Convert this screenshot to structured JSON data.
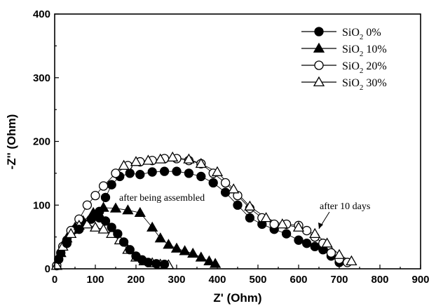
{
  "chart_data": {
    "type": "scatter",
    "xlabel": "Z' (Ohm)",
    "ylabel": "-Z'' (Ohm)",
    "xlim": [
      0,
      900
    ],
    "ylim": [
      0,
      400
    ],
    "xticks": [
      0,
      100,
      200,
      300,
      400,
      500,
      600,
      700,
      800,
      900
    ],
    "yticks": [
      0,
      100,
      200,
      300,
      400
    ],
    "legend_position": "top-right",
    "annotations": [
      {
        "text": "after being assembled",
        "x": 180,
        "y": 108
      },
      {
        "text": "after 10 days",
        "x": 680,
        "y": 102,
        "arrow_to": [
          655,
          60
        ]
      }
    ],
    "series": [
      {
        "name_main": "SiO",
        "name_sub": "2",
        "name_tail": " 0%",
        "marker": "circle-filled",
        "points": [
          [
            5,
            5
          ],
          [
            15,
            25
          ],
          [
            30,
            45
          ],
          [
            50,
            62
          ],
          [
            70,
            72
          ],
          [
            95,
            82
          ],
          [
            110,
            90
          ],
          [
            125,
            112
          ],
          [
            140,
            132
          ],
          [
            160,
            145
          ],
          [
            185,
            150
          ],
          [
            210,
            148
          ],
          [
            240,
            152
          ],
          [
            270,
            153
          ],
          [
            300,
            153
          ],
          [
            330,
            150
          ],
          [
            360,
            145
          ],
          [
            390,
            135
          ],
          [
            420,
            120
          ],
          [
            450,
            100
          ],
          [
            480,
            80
          ],
          [
            510,
            70
          ],
          [
            540,
            62
          ],
          [
            570,
            55
          ],
          [
            600,
            45
          ],
          [
            620,
            40
          ],
          [
            640,
            35
          ],
          [
            660,
            30
          ],
          [
            680,
            20
          ],
          [
            700,
            10
          ]
        ]
      },
      {
        "name_main": "SiO",
        "name_sub": "2",
        "name_tail": " 10%",
        "marker": "triangle-filled",
        "points": [
          [
            5,
            5
          ],
          [
            15,
            25
          ],
          [
            30,
            48
          ],
          [
            50,
            65
          ],
          [
            70,
            75
          ],
          [
            95,
            88
          ],
          [
            120,
            96
          ],
          [
            150,
            95
          ],
          [
            180,
            92
          ],
          [
            210,
            88
          ],
          [
            240,
            65
          ],
          [
            260,
            48
          ],
          [
            280,
            38
          ],
          [
            300,
            32
          ],
          [
            320,
            28
          ],
          [
            340,
            24
          ],
          [
            360,
            18
          ],
          [
            380,
            12
          ],
          [
            395,
            8
          ]
        ]
      },
      {
        "name_main": "SiO",
        "name_sub": "2",
        "name_tail": " 20%",
        "marker": "circle-open",
        "points": [
          [
            5,
            5
          ],
          [
            20,
            35
          ],
          [
            40,
            60
          ],
          [
            60,
            78
          ],
          [
            80,
            100
          ],
          [
            100,
            115
          ],
          [
            120,
            130
          ],
          [
            150,
            150
          ],
          [
            180,
            162
          ],
          [
            210,
            168
          ],
          [
            240,
            170
          ],
          [
            270,
            173
          ],
          [
            300,
            173
          ],
          [
            330,
            170
          ],
          [
            360,
            165
          ],
          [
            390,
            150
          ],
          [
            420,
            135
          ],
          [
            450,
            115
          ],
          [
            480,
            95
          ],
          [
            510,
            80
          ],
          [
            540,
            70
          ],
          [
            570,
            70
          ],
          [
            600,
            68
          ],
          [
            620,
            60
          ],
          [
            640,
            50
          ],
          [
            660,
            40
          ],
          [
            680,
            25
          ],
          [
            700,
            15
          ],
          [
            720,
            10
          ]
        ]
      },
      {
        "name_main": "SiO",
        "name_sub": "2",
        "name_tail": " 30%",
        "marker": "triangle-open",
        "points": [
          [
            5,
            5
          ],
          [
            20,
            35
          ],
          [
            40,
            55
          ],
          [
            60,
            68
          ],
          [
            80,
            70
          ],
          [
            100,
            65
          ],
          [
            120,
            62
          ],
          [
            140,
            55
          ],
          [
            160,
            45
          ],
          [
            180,
            30
          ],
          [
            200,
            18
          ],
          [
            220,
            12
          ],
          [
            240,
            9
          ],
          [
            260,
            7
          ],
          [
            280,
            6
          ]
        ]
      },
      {
        "name_main": "",
        "name_sub": "",
        "name_tail": "",
        "marker": "circle-filled",
        "points": [
          [
            10,
            15
          ],
          [
            30,
            40
          ],
          [
            60,
            62
          ],
          [
            90,
            78
          ],
          [
            110,
            80
          ],
          [
            125,
            75
          ],
          [
            140,
            65
          ],
          [
            155,
            55
          ],
          [
            170,
            42
          ],
          [
            185,
            30
          ],
          [
            200,
            20
          ],
          [
            215,
            14
          ],
          [
            230,
            10
          ],
          [
            250,
            8
          ],
          [
            270,
            7
          ]
        ]
      },
      {
        "name_main": "",
        "name_sub": "",
        "name_tail": "",
        "marker": "triangle-open",
        "points": [
          [
            170,
            162
          ],
          [
            200,
            168
          ],
          [
            230,
            170
          ],
          [
            260,
            172
          ],
          [
            290,
            175
          ],
          [
            330,
            172
          ],
          [
            360,
            165
          ],
          [
            400,
            152
          ],
          [
            440,
            125
          ],
          [
            480,
            98
          ],
          [
            520,
            80
          ],
          [
            560,
            70
          ],
          [
            600,
            65
          ],
          [
            640,
            55
          ],
          [
            670,
            40
          ],
          [
            700,
            22
          ],
          [
            730,
            12
          ]
        ]
      }
    ]
  }
}
